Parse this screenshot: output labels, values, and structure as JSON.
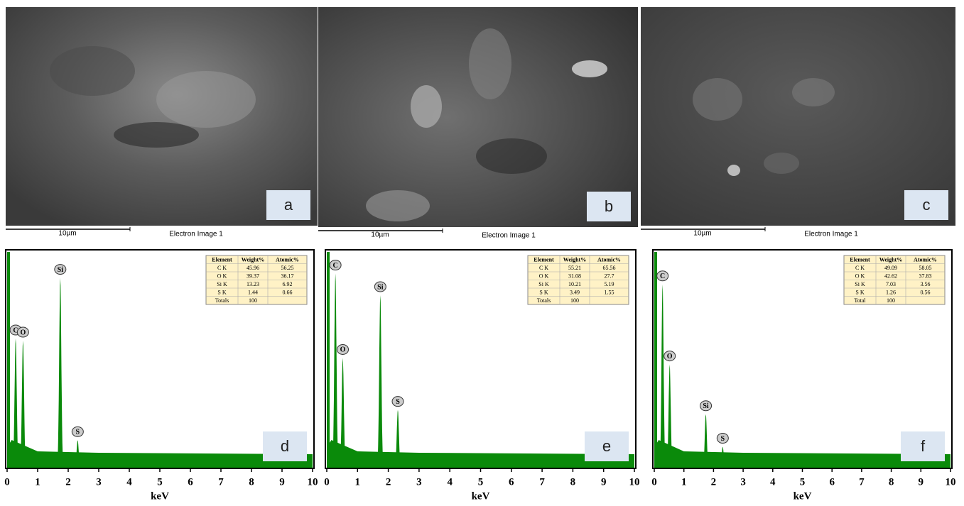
{
  "images": [
    {
      "label": "a",
      "scale": "10µm",
      "caption": "Electron Image 1"
    },
    {
      "label": "b",
      "scale": "10µm",
      "caption": "Electron Image 1"
    },
    {
      "label": "c",
      "scale": "10µm",
      "caption": "Electron Image 1"
    }
  ],
  "spectra": [
    {
      "label": "d",
      "x_label": "keV",
      "xlim": [
        0,
        10
      ],
      "xticks": [
        0,
        1,
        2,
        3,
        4,
        5,
        6,
        7,
        8,
        9,
        10
      ],
      "ylim": [
        0,
        100
      ],
      "peaks": [
        {
          "element": "C",
          "kev": 0.28,
          "height": 60
        },
        {
          "element": "O",
          "kev": 0.52,
          "height": 59
        },
        {
          "element": "Si",
          "kev": 1.74,
          "height": 88
        },
        {
          "element": "S",
          "kev": 2.31,
          "height": 13
        }
      ],
      "table": {
        "header": [
          "Element",
          "Weight%",
          "Atomic%"
        ],
        "rows": [
          [
            "C K",
            "45.96",
            "56.25"
          ],
          [
            "O K",
            "39.37",
            "36.17"
          ],
          [
            "Si K",
            "13.23",
            "6.92"
          ],
          [
            "S K",
            "1.44",
            "0.66"
          ],
          [
            "Totals",
            "100"
          ]
        ]
      }
    },
    {
      "label": "e",
      "x_label": "keV",
      "xlim": [
        0,
        10
      ],
      "xticks": [
        0,
        1,
        2,
        3,
        4,
        5,
        6,
        7,
        8,
        9,
        10
      ],
      "ylim": [
        0,
        100
      ],
      "peaks": [
        {
          "element": "C",
          "kev": 0.28,
          "height": 90
        },
        {
          "element": "O",
          "kev": 0.52,
          "height": 51
        },
        {
          "element": "Si",
          "kev": 1.74,
          "height": 80
        },
        {
          "element": "S",
          "kev": 2.31,
          "height": 27
        }
      ],
      "table": {
        "header": [
          "Element",
          "Weight%",
          "Atomic%"
        ],
        "rows": [
          [
            "C K",
            "55.21",
            "65.56"
          ],
          [
            "O K",
            "31.08",
            "27.7"
          ],
          [
            "Si K",
            "10.21",
            "5.19"
          ],
          [
            "S K",
            "3.49",
            "1.55"
          ],
          [
            "Totals",
            "100"
          ]
        ]
      }
    },
    {
      "label": "f",
      "x_label": "keV",
      "xlim": [
        0,
        10
      ],
      "xticks": [
        0,
        1,
        2,
        3,
        4,
        5,
        6,
        7,
        8,
        9,
        10
      ],
      "ylim": [
        0,
        100
      ],
      "peaks": [
        {
          "element": "C",
          "kev": 0.28,
          "height": 85
        },
        {
          "element": "O",
          "kev": 0.52,
          "height": 48
        },
        {
          "element": "Si",
          "kev": 1.74,
          "height": 25
        },
        {
          "element": "S",
          "kev": 2.31,
          "height": 10
        }
      ],
      "table": {
        "header": [
          "Element",
          "Weight%",
          "Atomic%"
        ],
        "rows": [
          [
            "C K",
            "49.09",
            "58.05"
          ],
          [
            "O K",
            "42.62",
            "37.83"
          ],
          [
            "Si K",
            "7.03",
            "3.56"
          ],
          [
            "S K",
            "1.26",
            "0.56"
          ],
          [
            "Total",
            "100"
          ]
        ]
      }
    }
  ]
}
